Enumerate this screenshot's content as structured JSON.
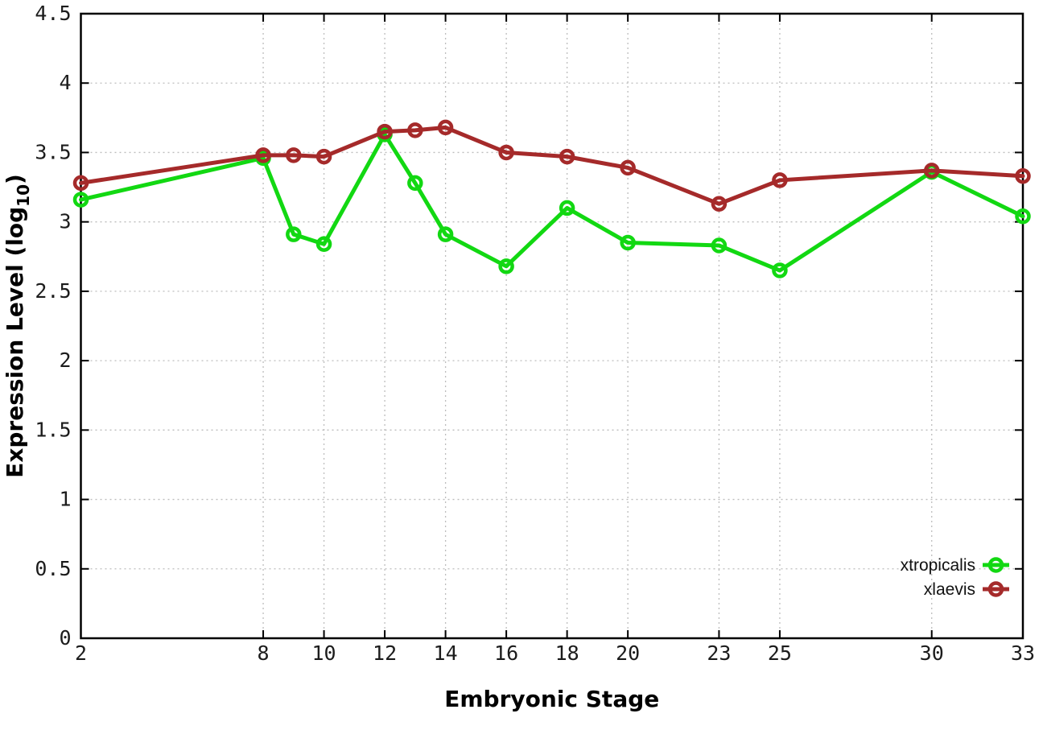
{
  "chart_data": {
    "type": "line",
    "title": "",
    "xlabel": "Embryonic Stage",
    "ylabel_prefix": "Expression Level (log",
    "ylabel_sub": "10",
    "ylabel_suffix": ")",
    "xlim": [
      2,
      33
    ],
    "ylim": [
      0,
      4.5
    ],
    "grid": true,
    "grid_style": "dotted",
    "legend_position": "inside-bottom-right",
    "marker": "open-circle",
    "x": [
      2,
      8,
      9,
      10,
      12,
      13,
      14,
      16,
      18,
      20,
      23,
      25,
      30,
      33
    ],
    "series": [
      {
        "name": "xtropicalis",
        "color": "#12d812",
        "values": [
          3.16,
          3.46,
          2.91,
          2.84,
          3.63,
          3.28,
          2.91,
          2.68,
          3.1,
          2.85,
          2.83,
          2.65,
          3.36,
          3.04
        ]
      },
      {
        "name": "xlaevis",
        "color": "#a52a2a",
        "values": [
          3.28,
          3.48,
          3.48,
          3.47,
          3.65,
          3.66,
          3.68,
          3.5,
          3.47,
          3.39,
          3.13,
          3.3,
          3.37,
          3.33
        ]
      }
    ],
    "xtick_values": [
      2,
      8,
      10,
      12,
      14,
      16,
      18,
      20,
      23,
      25,
      30,
      33
    ],
    "xtick_labels": [
      "2",
      "8",
      "10",
      "12",
      "14",
      "16",
      "18",
      "20",
      "23",
      "25",
      "30",
      "33"
    ],
    "ytick_values": [
      0,
      0.5,
      1,
      1.5,
      2,
      2.5,
      3,
      3.5,
      4,
      4.5
    ],
    "ytick_labels": [
      "0",
      "0.5",
      "1",
      "1.5",
      "2",
      "2.5",
      "3",
      "3.5",
      "4",
      "4.5"
    ],
    "colors": {
      "border": "#000000",
      "grid": "#bdbdbd",
      "tick_text": "#1c1c1c"
    }
  }
}
